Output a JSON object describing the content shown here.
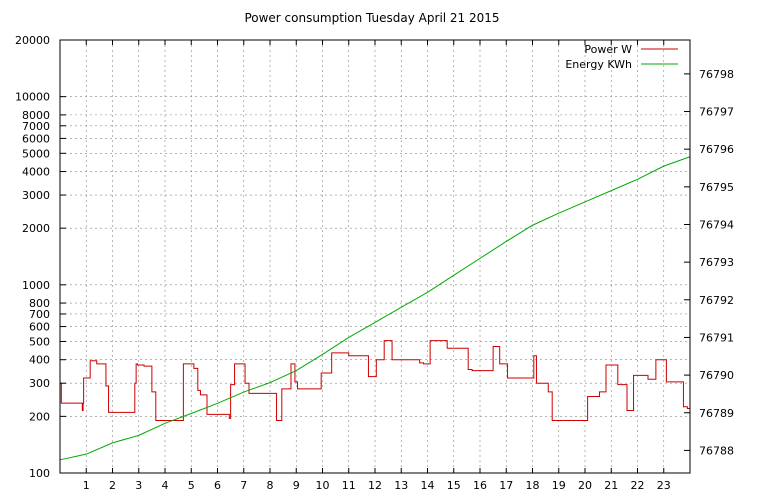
{
  "chart_data": {
    "type": "line",
    "title": "Power consumption Tuesday April 21 2015",
    "xlabel": "",
    "ylabel": "",
    "y2label": "",
    "xlim": [
      0,
      24
    ],
    "ylim": [
      100,
      20000
    ],
    "yscale": "log",
    "y2lim": [
      76787.4,
      76798.9
    ],
    "grid": true,
    "legend_position": "top-right",
    "x_ticks": [
      "1",
      "2",
      "3",
      "4",
      "5",
      "6",
      "7",
      "8",
      "9",
      "10",
      "11",
      "12",
      "13",
      "14",
      "15",
      "16",
      "17",
      "18",
      "19",
      "20",
      "21",
      "22",
      "23"
    ],
    "y_ticks": [
      "100",
      "200",
      "300",
      "400",
      "500",
      "600",
      "700",
      "800",
      "1000",
      "2000",
      "3000",
      "4000",
      "5000",
      "6000",
      "7000",
      "8000",
      "10000",
      "20000"
    ],
    "y2_ticks": [
      "76788",
      "76789",
      "76790",
      "76791",
      "76792",
      "76793",
      "76794",
      "76795",
      "76796",
      "76797",
      "76798"
    ],
    "series": [
      {
        "name": "Power W",
        "axis": "left",
        "color": "#cc0000",
        "step": true,
        "x": [
          0,
          0.05,
          0.85,
          0.88,
          0.9,
          1.15,
          1.4,
          1.65,
          1.75,
          1.85,
          2.85,
          2.9,
          2.95,
          3.2,
          3.5,
          3.65,
          4.7,
          5.1,
          5.25,
          5.35,
          5.6,
          6.45,
          6.5,
          6.65,
          7.05,
          7.2,
          8.25,
          8.45,
          8.8,
          8.95,
          9.05,
          9.95,
          10.35,
          11.0,
          11.75,
          12.05,
          12.35,
          12.65,
          13.7,
          13.85,
          14.1,
          14.75,
          15.55,
          15.7,
          16.5,
          16.75,
          17.05,
          18.05,
          18.15,
          18.6,
          18.75,
          20.1,
          20.55,
          20.8,
          21.25,
          21.6,
          21.85,
          22.4,
          22.7,
          23.1,
          23.75,
          23.9,
          24.0
        ],
        "values": [
          300,
          235,
          215,
          235,
          320,
          395,
          380,
          380,
          290,
          210,
          300,
          380,
          375,
          370,
          270,
          190,
          380,
          360,
          275,
          260,
          205,
          195,
          295,
          380,
          300,
          265,
          190,
          280,
          380,
          305,
          280,
          340,
          435,
          420,
          325,
          400,
          505,
          400,
          385,
          380,
          505,
          460,
          355,
          350,
          470,
          380,
          320,
          420,
          300,
          270,
          190,
          255,
          270,
          375,
          295,
          215,
          330,
          315,
          400,
          305,
          225,
          220,
          280
        ]
      },
      {
        "name": "Energy KWh",
        "axis": "right",
        "color": "#00aa00",
        "x": [
          0,
          1,
          2,
          3,
          4,
          5,
          6,
          7,
          8,
          9,
          10,
          11,
          12,
          13,
          14,
          15,
          16,
          17,
          18,
          19,
          20,
          21,
          22,
          23,
          24
        ],
        "values": [
          76787.75,
          76787.9,
          76788.2,
          76788.4,
          76788.72,
          76788.98,
          76789.25,
          76789.55,
          76789.8,
          76790.12,
          76790.55,
          76791.0,
          76791.4,
          76791.8,
          76792.2,
          76792.65,
          76793.1,
          76793.55,
          76793.98,
          76794.3,
          76794.6,
          76794.9,
          76795.2,
          76795.55,
          76795.8
        ]
      }
    ]
  }
}
